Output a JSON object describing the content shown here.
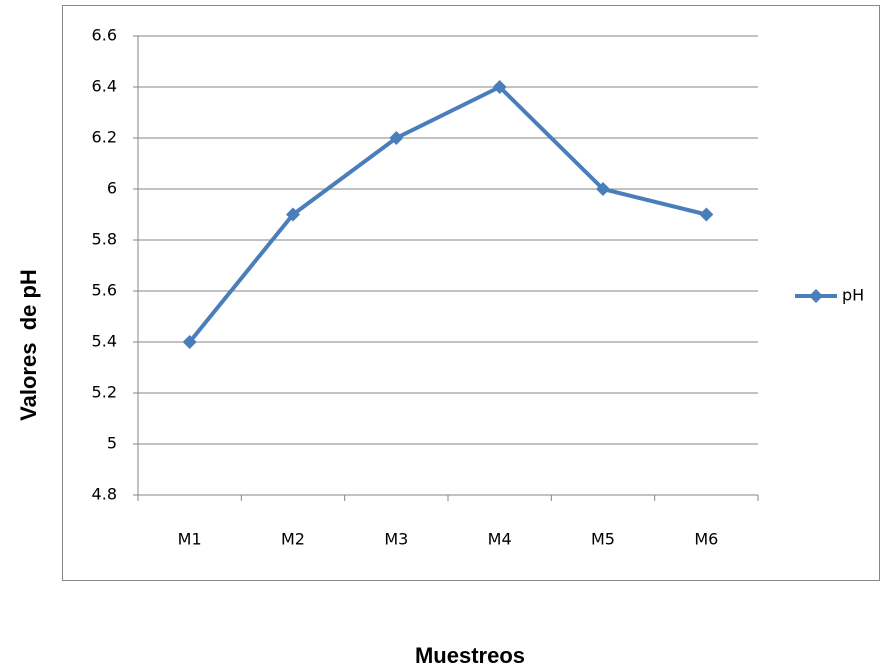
{
  "chart_data": {
    "type": "line",
    "categories": [
      "M1",
      "M2",
      "M3",
      "M4",
      "M5",
      "M6"
    ],
    "series": [
      {
        "name": "pH",
        "color": "#4a7ebb",
        "values": [
          5.4,
          5.9,
          6.2,
          6.4,
          6.0,
          5.9
        ]
      }
    ],
    "ylim": [
      4.8,
      6.6
    ],
    "yticks": [
      4.8,
      5,
      5.2,
      5.4,
      5.6,
      5.8,
      6,
      6.2,
      6.4,
      6.6
    ],
    "grid": true,
    "legend": "right",
    "xlabel": "Muestreos",
    "ylabel": "Valores  de pH"
  }
}
